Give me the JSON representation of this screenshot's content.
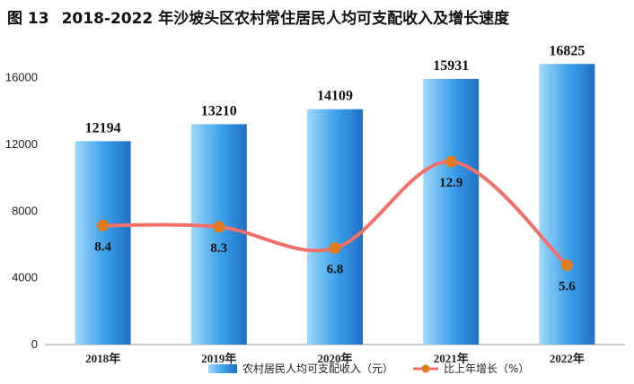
{
  "figure": {
    "number": "图 13",
    "title": "2018-2022 年沙坡头区农村常住居民人均可支配收入及增长速度"
  },
  "chart_data": {
    "type": "bar",
    "categories": [
      "2018年",
      "2019年",
      "2020年",
      "2021年",
      "2022年"
    ],
    "series": [
      {
        "name": "农村居民人均可支配收入（元）",
        "type": "bar",
        "axis": "left",
        "values": [
          12194,
          13210,
          14109,
          15931,
          16825
        ],
        "color": "#3a9ee8"
      },
      {
        "name": "比上年增长（%）",
        "type": "line",
        "axis": "right-hidden",
        "values": [
          8.4,
          8.3,
          6.8,
          12.9,
          5.6
        ],
        "color": "#f2706a",
        "marker_color": "#e07b1f"
      }
    ],
    "yaxis": {
      "ticks": [
        0,
        4000,
        8000,
        12000,
        16000
      ],
      "ylim": [
        0,
        17000
      ]
    },
    "growth_axis_range": [
      0,
      20
    ],
    "grid": false,
    "legend": "bottom"
  }
}
